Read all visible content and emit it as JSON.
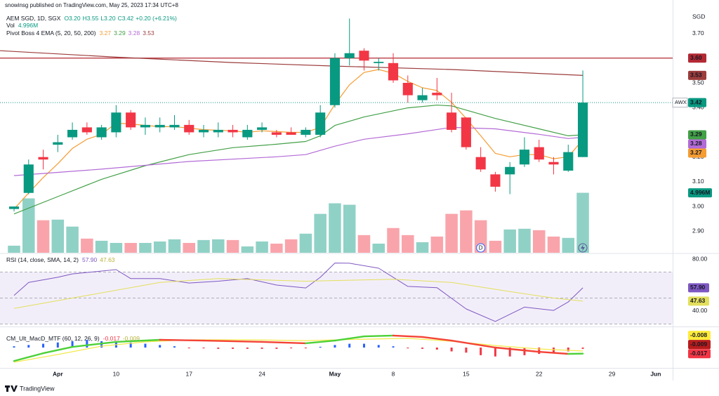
{
  "header": {
    "publisher": "snowinsg published on TradingView.com, May 25, 2023 17:34 UTC+8",
    "symbol": "AEM SGD, 1D, SGX",
    "ohlc": [
      "O3.20",
      "H3.55",
      "L3.20",
      "C3.42"
    ],
    "change": "+0.20 (+6.21%)",
    "currency": "SGD"
  },
  "footer": {
    "brand": "TradingView"
  },
  "chart_data": [
    {
      "type": "candlestick",
      "title": "Pivot Boss 4 EMA (5, 20, 50, 200)",
      "open": [
        2.99,
        3.055,
        3.2,
        3.25,
        3.28,
        3.32,
        3.28,
        3.3,
        3.38,
        3.32,
        3.32,
        3.32,
        3.33,
        3.3,
        3.3,
        3.31,
        3.28,
        3.31,
        3.3,
        3.3,
        3.29,
        3.29,
        3.41,
        3.6,
        3.63,
        3.58,
        3.58,
        3.5,
        3.43,
        3.46,
        3.38,
        3.36,
        3.2,
        3.13,
        3.13,
        3.17,
        3.24,
        3.18,
        3.145,
        3.2
      ],
      "high": [
        3.0,
        3.19,
        3.23,
        3.29,
        3.34,
        3.34,
        3.33,
        3.41,
        3.39,
        3.36,
        3.36,
        3.37,
        3.35,
        3.33,
        3.34,
        3.33,
        3.33,
        3.34,
        3.31,
        3.32,
        3.32,
        3.41,
        3.62,
        3.76,
        3.64,
        3.6,
        3.62,
        3.53,
        3.48,
        3.52,
        3.46,
        3.36,
        3.24,
        3.14,
        3.18,
        3.28,
        3.27,
        3.2,
        3.25,
        3.55
      ],
      "low": [
        2.98,
        3.05,
        3.15,
        3.22,
        3.27,
        3.29,
        3.27,
        3.28,
        3.31,
        3.29,
        3.3,
        3.31,
        3.29,
        3.28,
        3.28,
        3.28,
        3.27,
        3.3,
        3.28,
        3.29,
        3.28,
        3.28,
        3.4,
        3.57,
        3.55,
        3.55,
        3.5,
        3.42,
        3.42,
        3.43,
        3.3,
        3.23,
        3.14,
        3.06,
        3.05,
        3.16,
        3.18,
        3.13,
        3.14,
        3.2
      ],
      "close": [
        3.0,
        3.17,
        3.19,
        3.26,
        3.31,
        3.3,
        3.32,
        3.38,
        3.32,
        3.33,
        3.33,
        3.33,
        3.3,
        3.31,
        3.31,
        3.3,
        3.31,
        3.32,
        3.29,
        3.29,
        3.31,
        3.38,
        3.6,
        3.62,
        3.59,
        3.585,
        3.51,
        3.45,
        3.45,
        3.45,
        3.31,
        3.24,
        3.15,
        3.08,
        3.16,
        3.23,
        3.19,
        3.17,
        3.22,
        3.42
      ],
      "up_color": "#089981",
      "down_color": "#f23645",
      "xlim": [
        -0.963,
        45.16
      ],
      "xticks": [
        {
          "value": 3,
          "label": "Apr"
        },
        {
          "value": 7,
          "label": "10"
        },
        {
          "value": 12,
          "label": "17"
        },
        {
          "value": 17,
          "label": "24"
        },
        {
          "value": 22,
          "label": "May"
        },
        {
          "value": 26,
          "label": "8"
        },
        {
          "value": 31,
          "label": "15"
        },
        {
          "value": 36,
          "label": "22"
        },
        {
          "value": 41,
          "label": "29"
        },
        {
          "value": 44,
          "label": "Jun"
        }
      ],
      "ylim": [
        2.813,
        3.835
      ],
      "yticks": [
        {
          "value": 3.7,
          "label": "3.70"
        },
        {
          "value": 3.5,
          "label": "3.50"
        },
        {
          "value": 3.4,
          "label": "3.40"
        },
        {
          "value": 3.2,
          "label": "3.20"
        },
        {
          "value": 3.1,
          "label": "3.10"
        },
        {
          "value": 3.0,
          "label": "3.00"
        },
        {
          "value": 2.9,
          "label": "2.90"
        }
      ],
      "hline": {
        "value": 3.6,
        "label": "3.60",
        "color": "#b22833"
      },
      "symbol_badge": "AWX",
      "close_badge": "3.42",
      "series": [
        {
          "color": "#f59c32",
          "label": "3.27",
          "values": [
            2.99,
            3.055,
            3.117,
            3.173,
            3.235,
            3.272,
            3.292,
            3.337,
            3.334,
            3.328,
            3.323,
            3.323,
            3.317,
            3.311,
            3.308,
            3.306,
            3.3,
            3.306,
            3.303,
            3.3,
            3.3,
            3.32,
            3.413,
            3.492,
            3.542,
            3.554,
            3.539,
            3.506,
            3.48,
            3.469,
            3.421,
            3.356,
            3.286,
            3.215,
            3.201,
            3.21,
            3.21,
            3.193,
            3.201,
            3.27
          ]
        },
        {
          "color": "#43a047",
          "label": "3.29",
          "x": [
            0,
            3,
            6,
            9,
            12,
            15,
            18,
            20,
            21,
            22,
            24,
            27,
            29,
            30,
            33,
            36,
            38,
            39
          ],
          "values": [
            2.97,
            3.04,
            3.11,
            3.165,
            3.21,
            3.238,
            3.252,
            3.263,
            3.286,
            3.328,
            3.362,
            3.399,
            3.41,
            3.407,
            3.356,
            3.314,
            3.286,
            3.29
          ]
        },
        {
          "color": "#b36bd6",
          "label": "3.28",
          "x": [
            0,
            6,
            12,
            18,
            20,
            22,
            24,
            27,
            30,
            33,
            36,
            38,
            39
          ],
          "values": [
            3.125,
            3.151,
            3.182,
            3.201,
            3.21,
            3.244,
            3.272,
            3.294,
            3.32,
            3.314,
            3.292,
            3.275,
            3.28
          ]
        },
        {
          "color": "#9c3c3c",
          "label": "3.53",
          "x": [
            -0.963,
            7,
            15,
            22,
            30,
            39
          ],
          "values": [
            3.63,
            3.604,
            3.582,
            3.568,
            3.554,
            3.53
          ]
        }
      ],
      "markers": [
        {
          "x": 32,
          "label": "D"
        }
      ]
    },
    {
      "type": "bar",
      "title": "Vol",
      "badge": "4.996M",
      "ylim": [
        0,
        6.14
      ],
      "up_color": "rgba(8,153,129,0.45)",
      "down_color": "rgba(242,54,69,0.45)",
      "values": [
        0.59,
        4.53,
        2.71,
        2.76,
        2.18,
        1.18,
        1.0,
        0.82,
        0.82,
        0.82,
        0.94,
        1.12,
        0.82,
        1.06,
        1.12,
        1.06,
        0.53,
        0.94,
        0.76,
        1.12,
        1.59,
        3.24,
        4.12,
        4.0,
        1.47,
        0.76,
        2.06,
        1.47,
        0.88,
        1.35,
        3.24,
        3.53,
        2.71,
        1.0,
        1.94,
        2.0,
        1.88,
        1.35,
        1.24,
        4.996
      ]
    },
    {
      "type": "line",
      "title": "RSI (14, close, SMA, 14, 2)",
      "ylim": [
        28.1,
        83.8
      ],
      "yticks": [
        {
          "value": 80,
          "label": "80.00"
        },
        {
          "value": 40,
          "label": "40.00"
        }
      ],
      "levels": [
        30,
        50,
        70
      ],
      "band_color": "rgba(126,87,194,0.1)",
      "level_color": "#9598a1",
      "series": [
        {
          "color": "#7e57c2",
          "label": "57.90",
          "label_text_color": "#ffffff",
          "x": [
            0,
            1,
            3,
            4,
            7,
            8,
            10,
            12,
            14,
            16,
            18,
            20,
            21,
            22,
            23,
            25,
            27,
            29,
            31,
            33,
            35,
            37,
            38,
            39
          ],
          "values": [
            52,
            62,
            66,
            68.6,
            71.9,
            65,
            65,
            61.6,
            63,
            65,
            60,
            57.8,
            66,
            77,
            76.8,
            73,
            59,
            58,
            41.6,
            32,
            43,
            40.5,
            47,
            57.9
          ]
        },
        {
          "color": "#e3df5c",
          "label": "47.63",
          "label_text_color": "#131722",
          "x": [
            0,
            5,
            10,
            14,
            20,
            26,
            30,
            34,
            37,
            39
          ],
          "values": [
            42,
            52,
            62,
            65,
            63,
            64.5,
            62,
            55,
            50,
            47.63
          ]
        }
      ]
    },
    {
      "type": "macd",
      "title": "CM_Ult_MacD_MTF (60, 12, 26, 9)",
      "ylim": [
        -0.024,
        -0.004
      ],
      "macd": {
        "rising_color": "#4cd137",
        "falling_color": "#f44336",
        "x": [
          0,
          2,
          4,
          7,
          10,
          13,
          17,
          20,
          22,
          24,
          26,
          28,
          30,
          33,
          36,
          38,
          39
        ],
        "values": [
          -0.0206,
          -0.0168,
          -0.0137,
          -0.0112,
          -0.0102,
          -0.0106,
          -0.0112,
          -0.0119,
          -0.0106,
          -0.0085,
          -0.0081,
          -0.0088,
          -0.0106,
          -0.014,
          -0.0161,
          -0.0171,
          -0.017
        ]
      },
      "signal": {
        "color": "#f3e94b",
        "x": [
          0,
          3,
          6,
          9,
          12,
          16,
          20,
          24,
          27,
          30,
          33,
          36,
          39
        ],
        "values": [
          -0.0212,
          -0.0174,
          -0.0133,
          -0.0112,
          -0.0102,
          -0.0102,
          -0.0106,
          -0.0099,
          -0.0095,
          -0.0109,
          -0.013,
          -0.0147,
          -0.0157
        ]
      },
      "histogram": {
        "lim": [
          -0.008,
          0.008
        ],
        "up_color": "#2962ff",
        "down_color": "#f23645",
        "values": [
          0.0005,
          0.001,
          0.0015,
          0.002,
          0.0025,
          0.003,
          0.0025,
          0.0025,
          0.002,
          0.0015,
          0.001,
          0.0005,
          -0.0003,
          -0.0003,
          -0.0005,
          -0.0005,
          -0.0005,
          -0.0005,
          -0.0005,
          -0.0003,
          -0.0003,
          0.0003,
          0.001,
          0.0015,
          0.0015,
          0.001,
          0.0005,
          -0.0003,
          -0.0005,
          -0.0008,
          -0.0015,
          -0.002,
          -0.003,
          -0.0035,
          -0.0035,
          -0.003,
          -0.0025,
          -0.002,
          -0.0015,
          -0.0005
        ]
      },
      "badges": [
        {
          "value": -0.008,
          "label": "-0.008",
          "color": "#ffeb3b",
          "text_color": "#131722"
        },
        {
          "value": -0.009,
          "label": "-0.009",
          "color": "#b71c1c",
          "text_color": "#ffffff"
        },
        {
          "value": -0.017,
          "label": "-0.017",
          "color": "#f23645",
          "text_color": "#ffffff"
        }
      ]
    }
  ]
}
